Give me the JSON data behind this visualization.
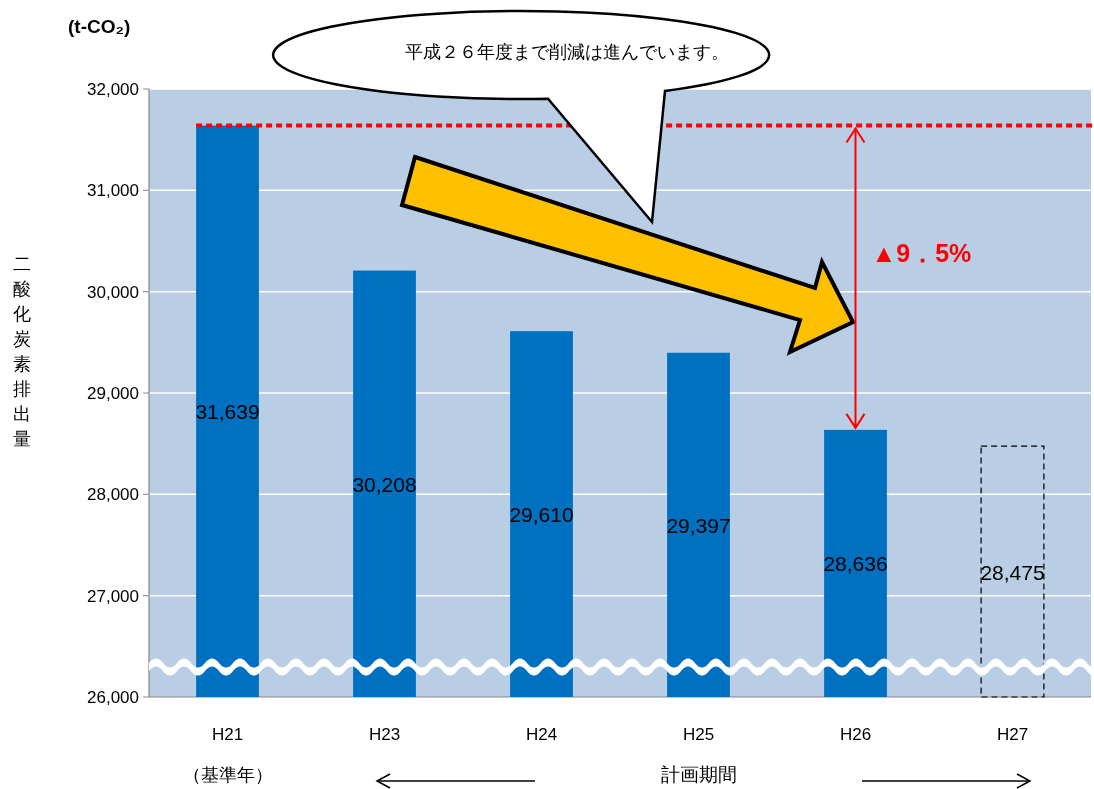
{
  "chart_data": {
    "type": "bar",
    "ylabel": "二酸化炭素排出量",
    "categories": [
      "H21",
      "H23",
      "H24",
      "H25",
      "H26",
      "H27"
    ],
    "series": [
      {
        "color": "#0070c0",
        "values": [
          31639,
          30208,
          29610,
          29397,
          28636,
          null
        ],
        "value_labels": [
          "31,639",
          "30,208",
          "29,610",
          "29,397",
          "28,636",
          null
        ]
      },
      {
        "color": "#000000",
        "line_style": "dashed",
        "values": [
          null,
          null,
          null,
          null,
          null,
          28475
        ],
        "value_labels": [
          null,
          null,
          null,
          null,
          null,
          "28,475"
        ]
      }
    ],
    "ylim": [
      26000,
      32000
    ],
    "yticks": [
      {
        "value": 26000,
        "label": "26,000"
      },
      {
        "value": 27000,
        "label": "27,000"
      },
      {
        "value": 28000,
        "label": "28,000"
      },
      {
        "value": 29000,
        "label": "29,000"
      },
      {
        "value": 30000,
        "label": "30,000"
      },
      {
        "value": 31000,
        "label": "31,000"
      },
      {
        "value": 32000,
        "label": "32,000"
      }
    ],
    "grid": "y",
    "ref_lines": [
      {
        "axis": "y",
        "value": 31639,
        "color": "#ff0000",
        "line_style": "dashed"
      }
    ],
    "annotations": [
      "(t-CO₂)",
      "平成２６年度まで削減は進んでいます。",
      "▲9．5%",
      "（基準年）",
      "計画期間"
    ]
  }
}
